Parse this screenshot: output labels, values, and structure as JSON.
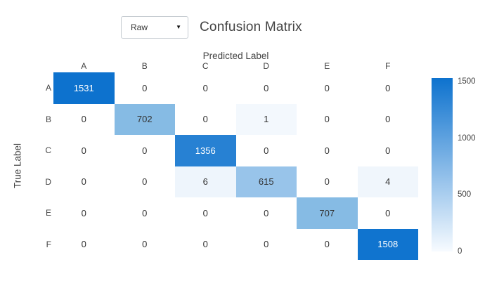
{
  "header": {
    "dropdown_value": "Raw",
    "dropdown_caret_icon": "▼",
    "title": "Confusion Matrix"
  },
  "chart_data": {
    "type": "heatmap",
    "title": "Confusion Matrix",
    "xlabel": "Predicted Label",
    "ylabel": "True Label",
    "x_categories": [
      "A",
      "B",
      "C",
      "D",
      "E",
      "F"
    ],
    "y_categories": [
      "A",
      "B",
      "C",
      "D",
      "E",
      "F"
    ],
    "values": [
      [
        1531,
        0,
        0,
        0,
        0,
        0
      ],
      [
        0,
        702,
        0,
        1,
        0,
        0
      ],
      [
        0,
        0,
        1356,
        0,
        0,
        0
      ],
      [
        0,
        0,
        6,
        615,
        0,
        4
      ],
      [
        0,
        0,
        0,
        0,
        707,
        0
      ],
      [
        0,
        0,
        0,
        0,
        0,
        1508
      ]
    ],
    "zmin": 0,
    "zmax": 1531,
    "colorbar_ticks": [
      0,
      500,
      1000,
      1500
    ],
    "colorscale": [
      [
        0.0,
        "#ffffff"
      ],
      [
        0.0005,
        "#f3f8fd"
      ],
      [
        0.004,
        "#eef5fc"
      ],
      [
        0.4,
        "#99c4ea"
      ],
      [
        0.46,
        "#86bbe4"
      ],
      [
        1.0,
        "#0d72ce"
      ]
    ],
    "legend_position": "right",
    "grid": false
  },
  "colors": {
    "accent_blue": "#0d72ce",
    "colorbar_low": "#f7fbff",
    "axis_text": "#444444",
    "cell_text_dark": "#333333",
    "cell_text_light": "#ffffff",
    "dropdown_border": "#c6ccd2"
  }
}
